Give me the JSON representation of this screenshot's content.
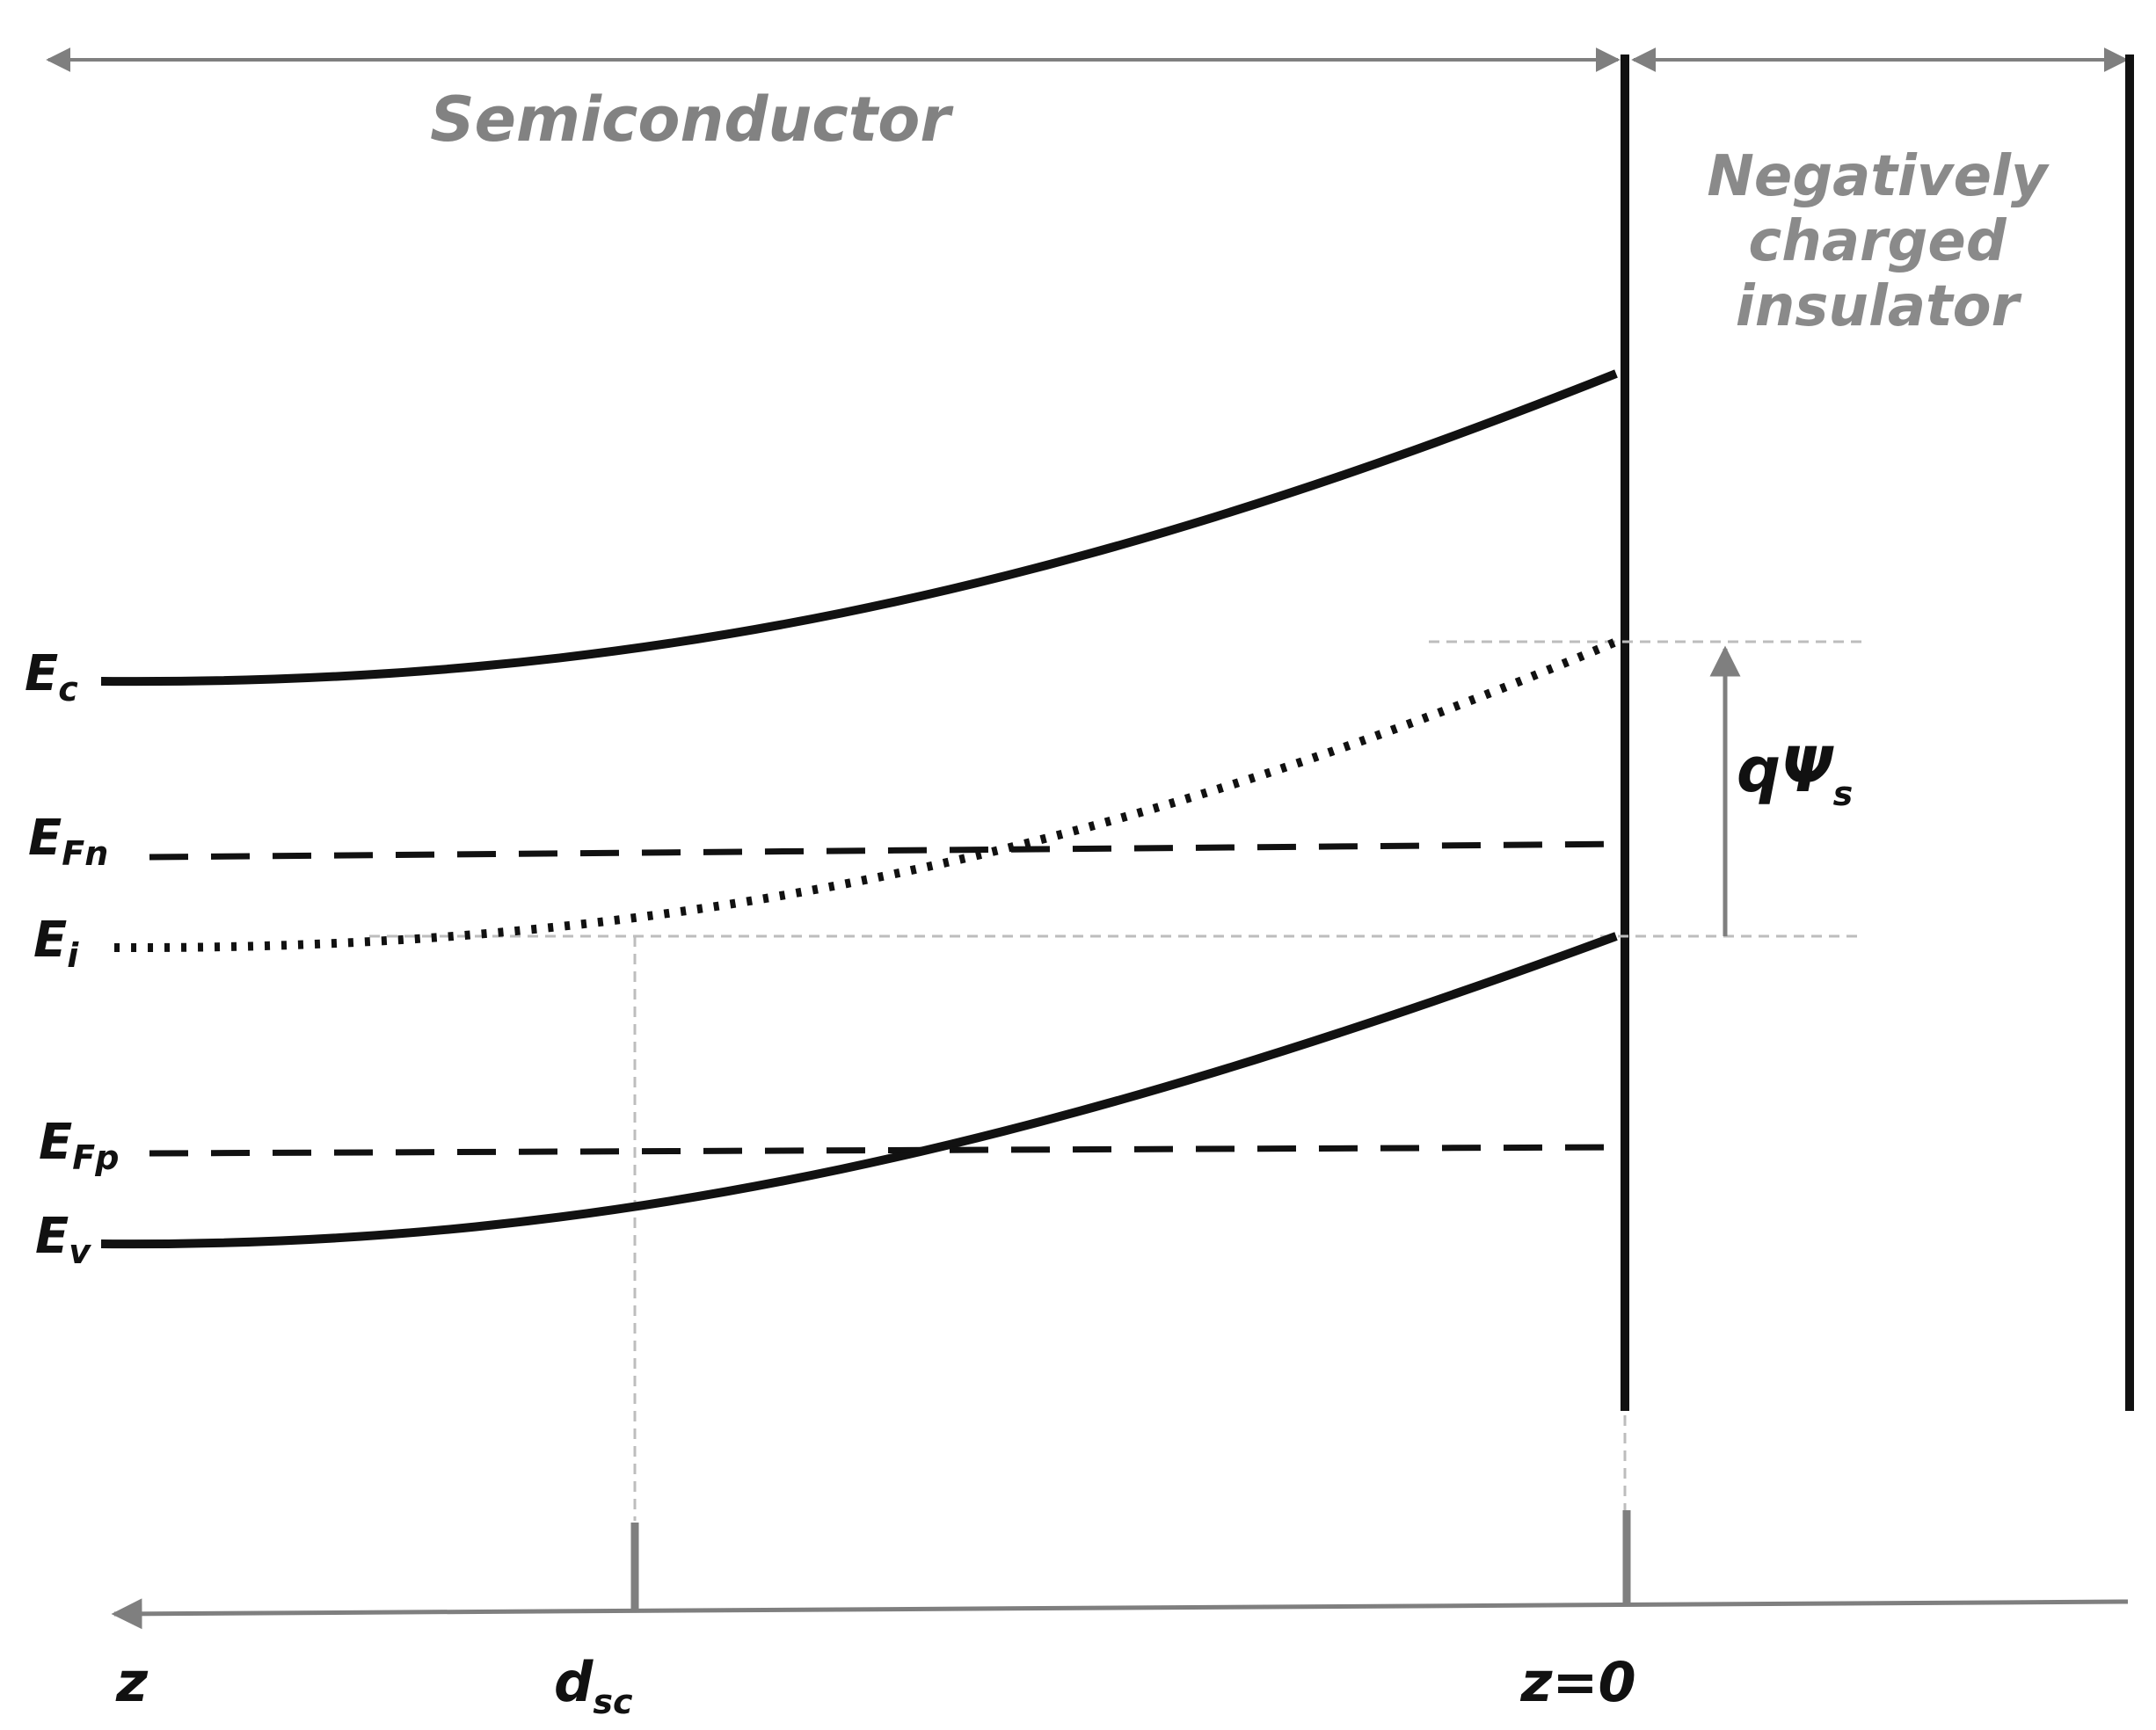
{
  "regions": {
    "semiconductor": "Semiconductor",
    "insulator_lines": [
      "Negatively",
      "charged",
      "insulator"
    ]
  },
  "bands": {
    "ec": {
      "main": "E",
      "sub": "c"
    },
    "efn": {
      "main": "E",
      "sub": "Fn"
    },
    "ei": {
      "main": "E",
      "sub": "i"
    },
    "efp": {
      "main": "E",
      "sub": "Fp"
    },
    "ev": {
      "main": "E",
      "sub": "v"
    }
  },
  "potential": {
    "main": "qΨ",
    "sub": "s"
  },
  "axis": {
    "z": "z",
    "dsc": {
      "main": "d",
      "sub": "sc"
    },
    "origin": "z=0"
  },
  "colors": {
    "line": "#111111",
    "annotation": "#7f7f7f",
    "guide": "#bdbdbd"
  }
}
